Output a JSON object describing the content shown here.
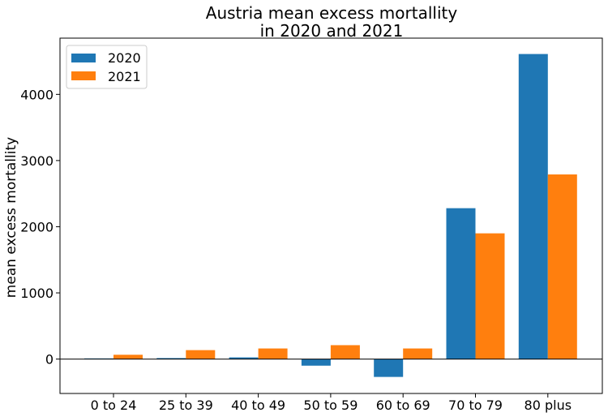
{
  "chart_data": {
    "type": "bar",
    "title_lines": [
      "Austria mean excess mortallity",
      "in 2020 and 2021"
    ],
    "xlabel": "",
    "ylabel": "mean excess mortallity",
    "categories": [
      "0 to 24",
      "25 to 39",
      "40 to 49",
      "50 to 59",
      "60 to 69",
      "70 to 79",
      "80 plus"
    ],
    "series": [
      {
        "name": "2020",
        "color": "#1f77b4",
        "values": [
          10,
          15,
          25,
          -100,
          -270,
          2280,
          4610
        ]
      },
      {
        "name": "2021",
        "color": "#ff7f0e",
        "values": [
          65,
          135,
          160,
          210,
          160,
          1900,
          2790
        ]
      }
    ],
    "ylim": [
      -520,
      4850
    ],
    "yticks": [
      0,
      1000,
      2000,
      3000,
      4000
    ],
    "zero_line": true,
    "grid": false,
    "legend_position": "top-left"
  }
}
